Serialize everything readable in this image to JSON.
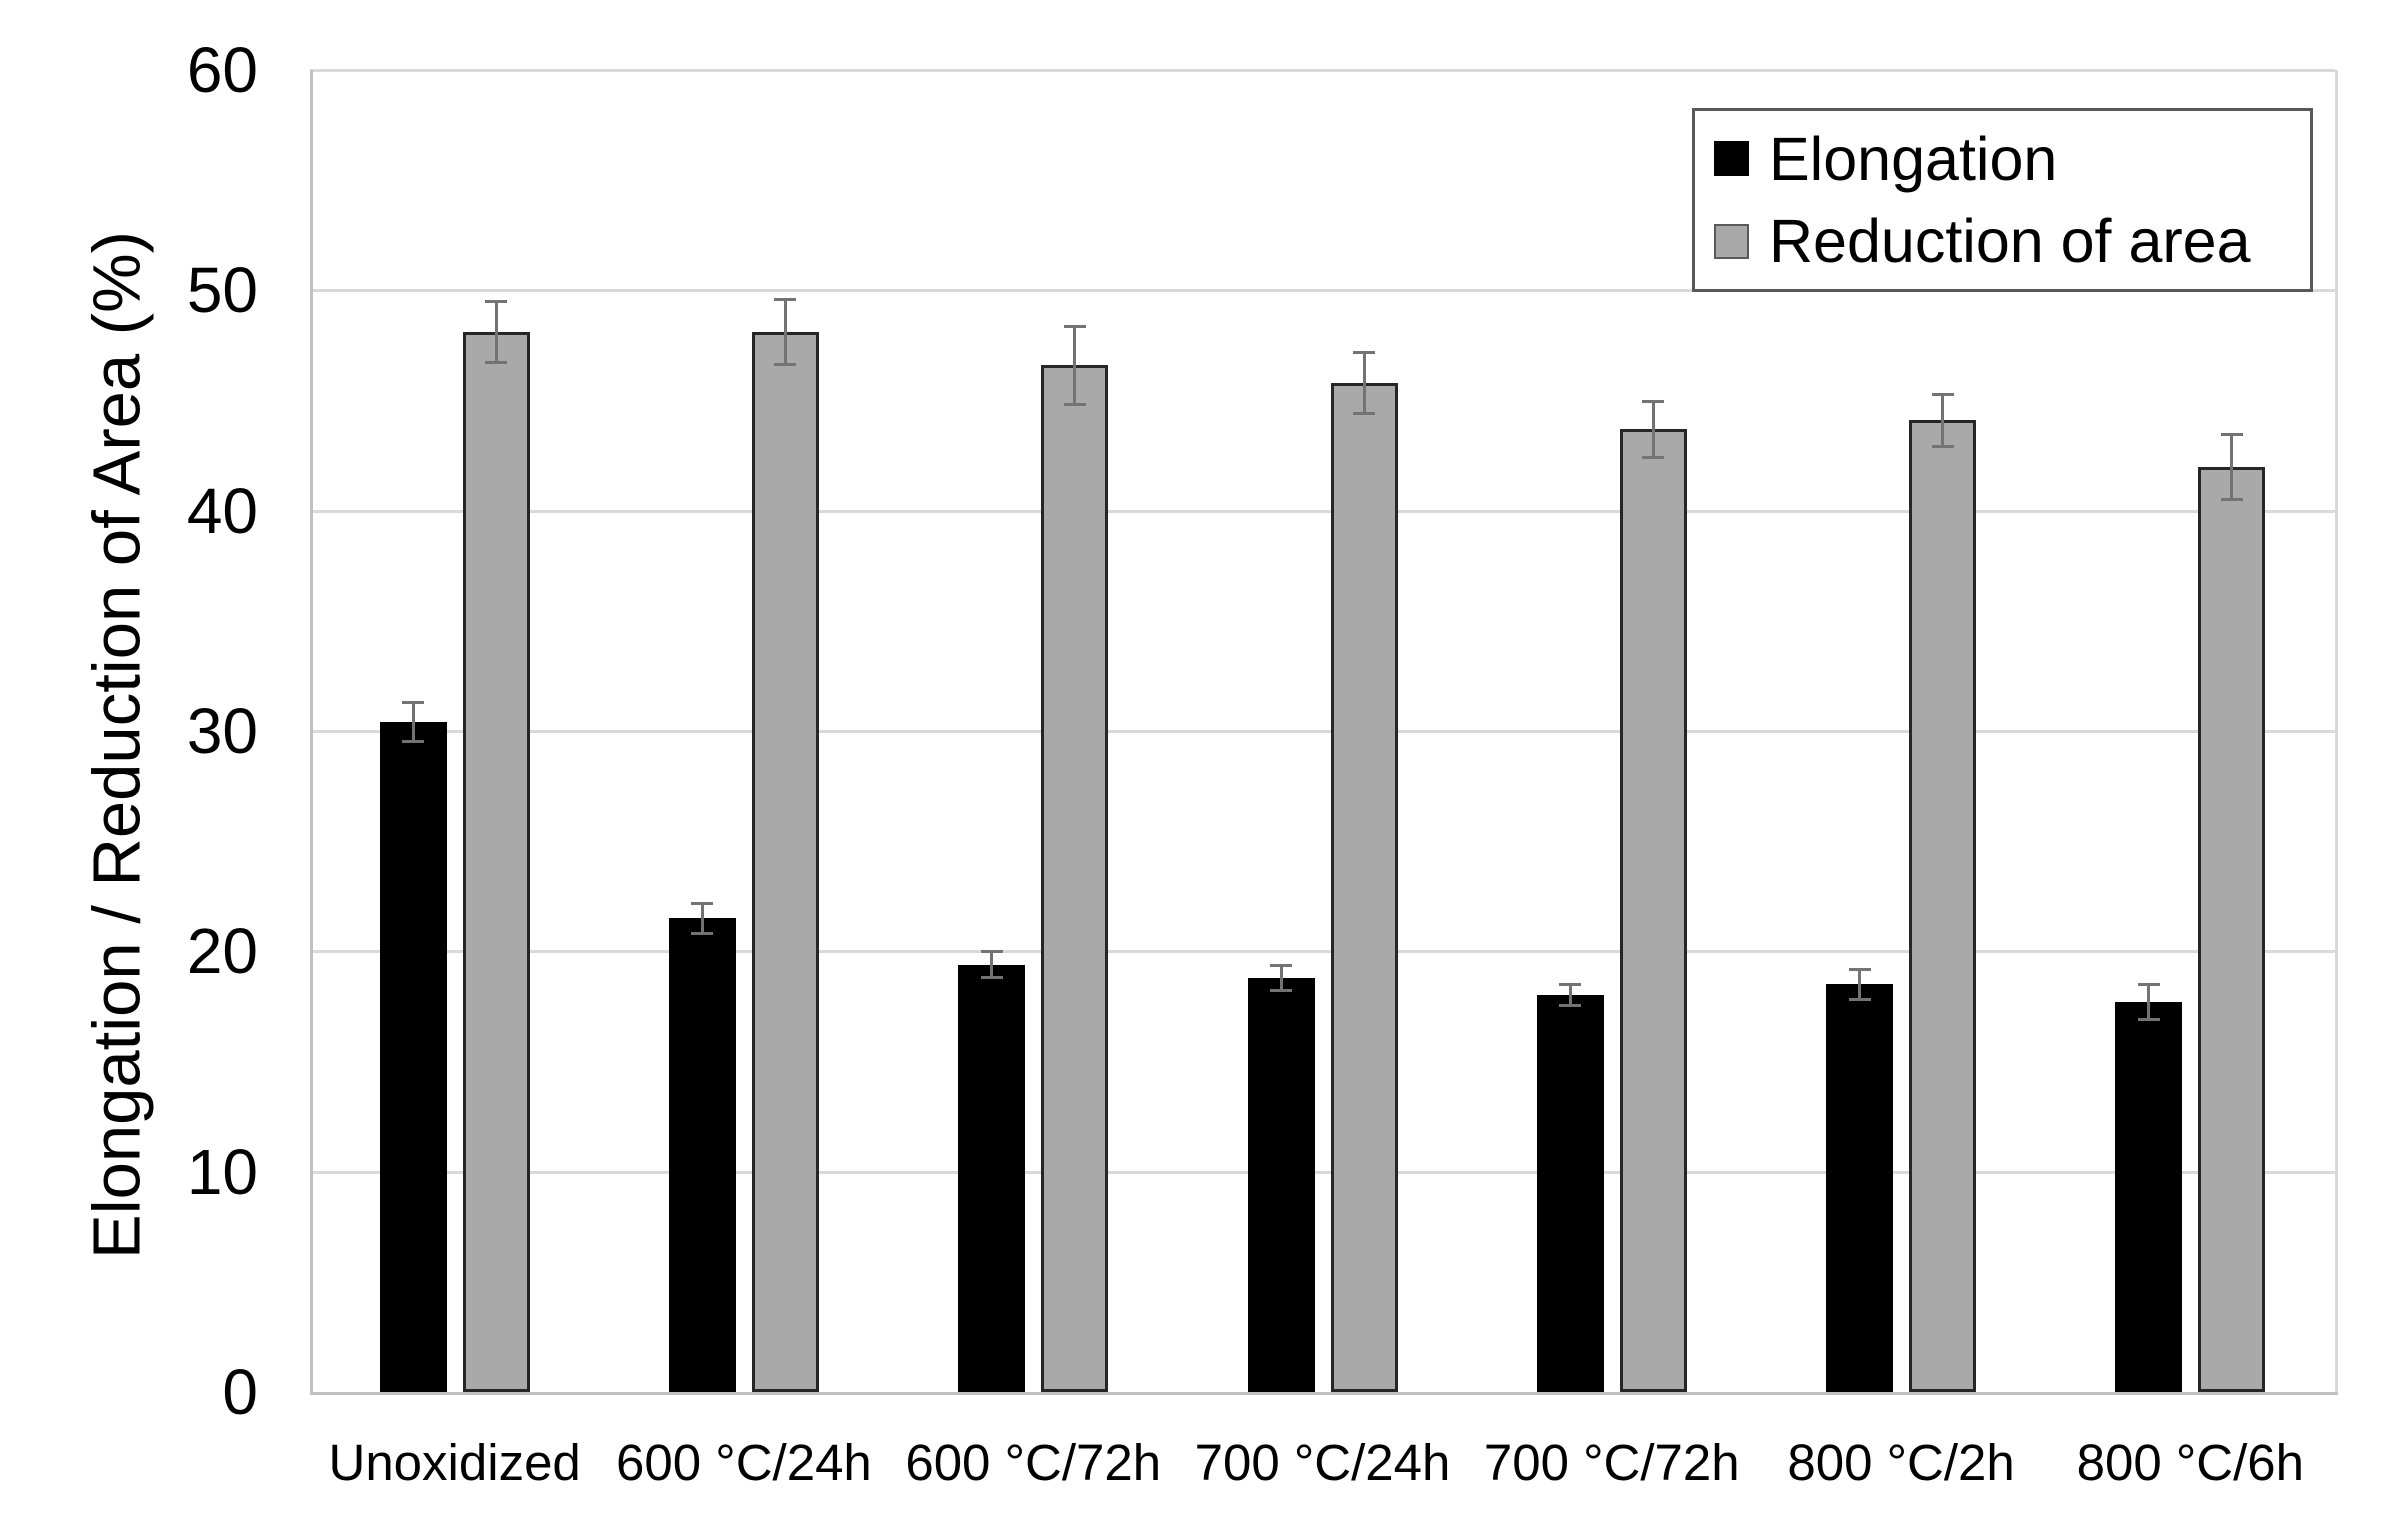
{
  "chart_data": {
    "type": "bar",
    "title": "",
    "ylabel": "Elongation / Reduction of Area (%)",
    "xlabel": "",
    "ylim": [
      0,
      60
    ],
    "yticks": [
      0,
      10,
      20,
      30,
      40,
      50,
      60
    ],
    "grid": "horizontal",
    "legend_position": "top-right-inside-bordered",
    "categories": [
      "Unoxidized",
      "600 °C/24h",
      "600 °C/72h",
      "700 °C/24h",
      "700 °C/72h",
      "800 °C/2h",
      "800 °C/6h"
    ],
    "series": [
      {
        "name": "Elongation",
        "color": "#000000",
        "values": [
          30.4,
          21.5,
          19.4,
          18.8,
          18.0,
          18.5,
          17.7
        ],
        "errors": [
          0.9,
          0.7,
          0.6,
          0.6,
          0.5,
          0.7,
          0.8
        ]
      },
      {
        "name": "Reduction of area",
        "color": "#a9a9a9",
        "values": [
          48.1,
          48.1,
          46.6,
          45.8,
          43.7,
          44.1,
          42.0
        ],
        "errors": [
          1.4,
          1.5,
          1.8,
          1.4,
          1.3,
          1.2,
          1.5
        ]
      }
    ],
    "colors": {
      "error_bar": "#737373",
      "gridline": "#d9d9d9",
      "axis": "#c0c0c0",
      "legend_border": "#595959",
      "gray_bar_border": "#262626",
      "text": "#000000"
    }
  }
}
